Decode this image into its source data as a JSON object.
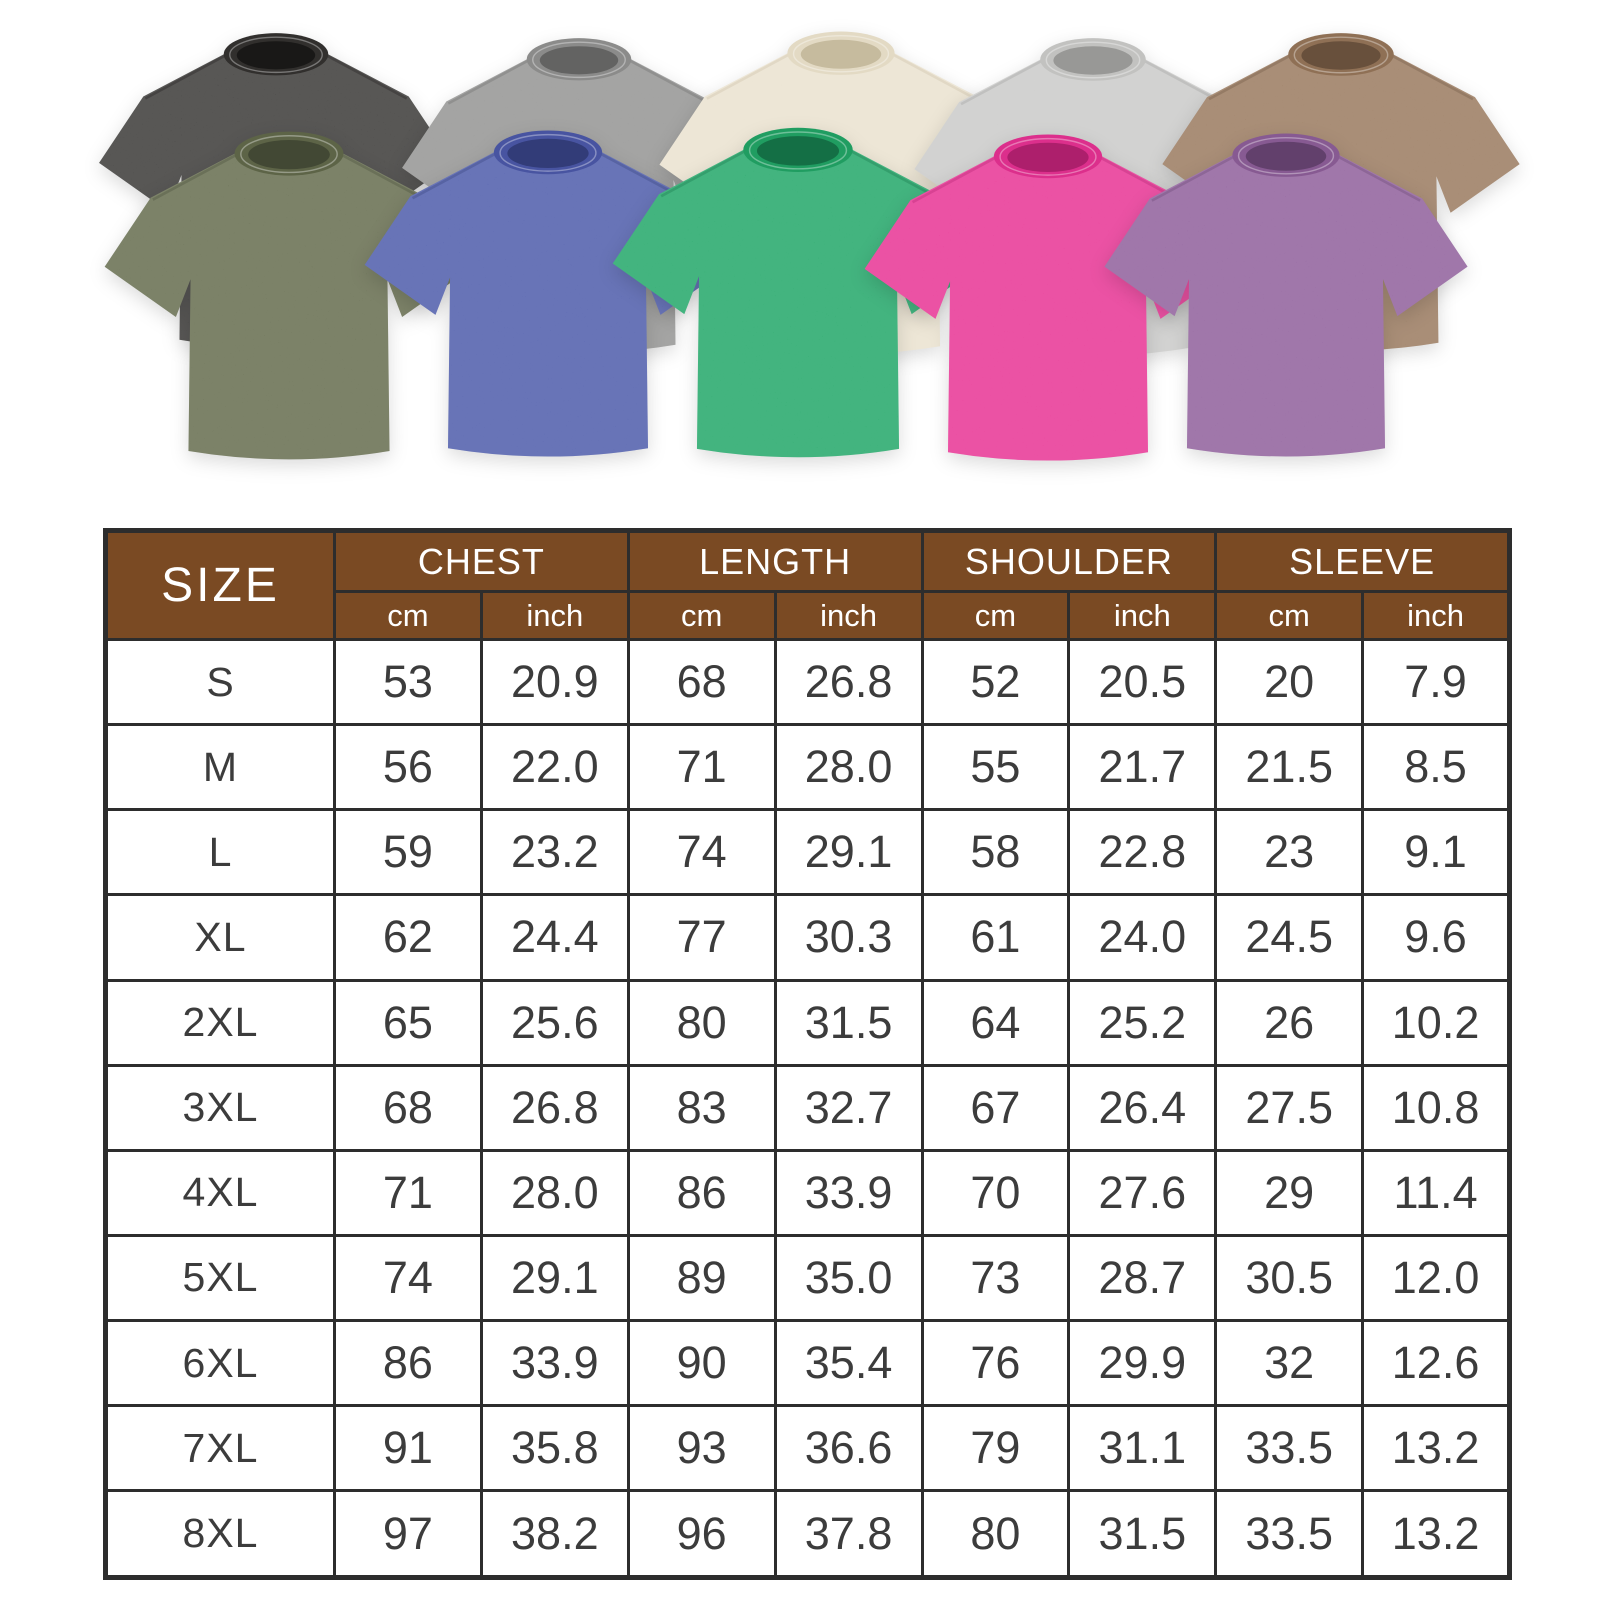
{
  "gallery": {
    "shirts": [
      {
        "id": "black",
        "label": "black washed t-shirt",
        "row": "back",
        "base": "#3a3937",
        "band": "#312f2d",
        "inner": "#191817"
      },
      {
        "id": "gray",
        "label": "gray washed t-shirt",
        "row": "back",
        "base": "#949493",
        "band": "#8b8b8a",
        "inner": "#636362"
      },
      {
        "id": "cream",
        "label": "cream washed t-shirt",
        "row": "back",
        "base": "#eae2cf",
        "band": "#e3dac4",
        "inner": "#c6bb9e"
      },
      {
        "id": "light-gray",
        "label": "light gray washed t-shirt",
        "row": "back",
        "base": "#cbcbc9",
        "band": "#c2c2c0",
        "inner": "#989896"
      },
      {
        "id": "brown",
        "label": "brown washed t-shirt",
        "row": "back",
        "base": "#9a7a5f",
        "band": "#8f7055",
        "inner": "#68503c"
      },
      {
        "id": "army-green",
        "label": "army green washed t-shirt",
        "row": "front",
        "base": "#656c4e",
        "band": "#5d6447",
        "inner": "#424834"
      },
      {
        "id": "blue",
        "label": "blue washed t-shirt",
        "row": "front",
        "base": "#4e5cab",
        "band": "#4854a1",
        "inner": "#323c78"
      },
      {
        "id": "green",
        "label": "green washed t-shirt",
        "row": "front",
        "base": "#22a768",
        "band": "#209d61",
        "inner": "#146f45"
      },
      {
        "id": "rose",
        "label": "rose pink washed t-shirt",
        "row": "front",
        "base": "#e83494",
        "band": "#dc2f8c",
        "inner": "#ad1f6c"
      },
      {
        "id": "purple",
        "label": "purple washed t-shirt",
        "row": "front",
        "base": "#8f5f9b",
        "band": "#875a92",
        "inner": "#62406c"
      }
    ]
  },
  "size_chart": {
    "colors": {
      "header_bg": "#7a4a23",
      "header_text": "#ffffff",
      "border": "#2d2d2d",
      "cell_text": "#3c3c3c"
    },
    "header": {
      "size_label": "SIZE",
      "groups": [
        {
          "label": "CHEST",
          "units": [
            "cm",
            "inch"
          ]
        },
        {
          "label": "LENGTH",
          "units": [
            "cm",
            "inch"
          ]
        },
        {
          "label": "SHOULDER",
          "units": [
            "cm",
            "inch"
          ]
        },
        {
          "label": "SLEEVE",
          "units": [
            "cm",
            "inch"
          ]
        }
      ]
    },
    "rows": [
      {
        "size": "S",
        "values": [
          "53",
          "20.9",
          "68",
          "26.8",
          "52",
          "20.5",
          "20",
          "7.9"
        ]
      },
      {
        "size": "M",
        "values": [
          "56",
          "22.0",
          "71",
          "28.0",
          "55",
          "21.7",
          "21.5",
          "8.5"
        ]
      },
      {
        "size": "L",
        "values": [
          "59",
          "23.2",
          "74",
          "29.1",
          "58",
          "22.8",
          "23",
          "9.1"
        ]
      },
      {
        "size": "XL",
        "values": [
          "62",
          "24.4",
          "77",
          "30.3",
          "61",
          "24.0",
          "24.5",
          "9.6"
        ]
      },
      {
        "size": "2XL",
        "values": [
          "65",
          "25.6",
          "80",
          "31.5",
          "64",
          "25.2",
          "26",
          "10.2"
        ]
      },
      {
        "size": "3XL",
        "values": [
          "68",
          "26.8",
          "83",
          "32.7",
          "67",
          "26.4",
          "27.5",
          "10.8"
        ]
      },
      {
        "size": "4XL",
        "values": [
          "71",
          "28.0",
          "86",
          "33.9",
          "70",
          "27.6",
          "29",
          "11.4"
        ]
      },
      {
        "size": "5XL",
        "values": [
          "74",
          "29.1",
          "89",
          "35.0",
          "73",
          "28.7",
          "30.5",
          "12.0"
        ]
      },
      {
        "size": "6XL",
        "values": [
          "86",
          "33.9",
          "90",
          "35.4",
          "76",
          "29.9",
          "32",
          "12.6"
        ]
      },
      {
        "size": "7XL",
        "values": [
          "91",
          "35.8",
          "93",
          "36.6",
          "79",
          "31.1",
          "33.5",
          "13.2"
        ]
      },
      {
        "size": "8XL",
        "values": [
          "97",
          "38.2",
          "96",
          "37.8",
          "80",
          "31.5",
          "33.5",
          "13.2"
        ]
      }
    ]
  }
}
